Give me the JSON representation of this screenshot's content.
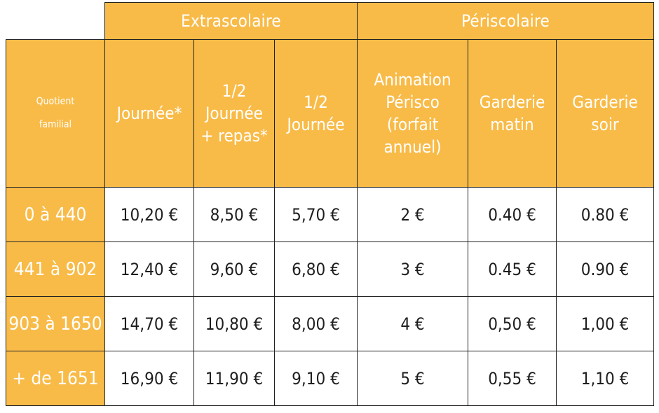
{
  "groups": {
    "extrascolaire": "Extrascolaire",
    "periscolaire": "Périscolaire"
  },
  "row_header_label": {
    "line1": "Quotient",
    "line2": "familial"
  },
  "columns": [
    {
      "lines": [
        "Journée*"
      ]
    },
    {
      "lines": [
        "1/2",
        "Journée",
        "+ repas*"
      ]
    },
    {
      "lines": [
        "1/2",
        "Journée"
      ]
    },
    {
      "lines": [
        "Animation",
        "Périsco",
        "(forfait",
        "annuel)"
      ]
    },
    {
      "lines": [
        "Garderie",
        "matin"
      ]
    },
    {
      "lines": [
        "Garderie",
        "soir"
      ]
    }
  ],
  "rows": [
    {
      "quotient": "0 à 440",
      "values": [
        "10,20 €",
        "8,50 €",
        "5,70 €",
        "2 €",
        "0.40 €",
        "0.80 €"
      ]
    },
    {
      "quotient": "441 à 902",
      "values": [
        "12,40 €",
        "9,60 €",
        "6,80 €",
        "3 €",
        "0.45 €",
        "0.90 €"
      ]
    },
    {
      "quotient": "903 à 1650",
      "values": [
        "14,70 €",
        "10,80 €",
        "8,00 €",
        "4 €",
        "0,50 €",
        "1,00 €"
      ]
    },
    {
      "quotient": "+ de 1651",
      "values": [
        "16,90 €",
        "11,90 €",
        "9,10 €",
        "5 €",
        "0,55 €",
        "1,10 €"
      ]
    }
  ],
  "colors": {
    "header_bg": "#f8bb48",
    "header_text": "#ffffff",
    "cell_bg": "#ffffff",
    "cell_text": "#1e1e1e",
    "border": "#222222"
  }
}
